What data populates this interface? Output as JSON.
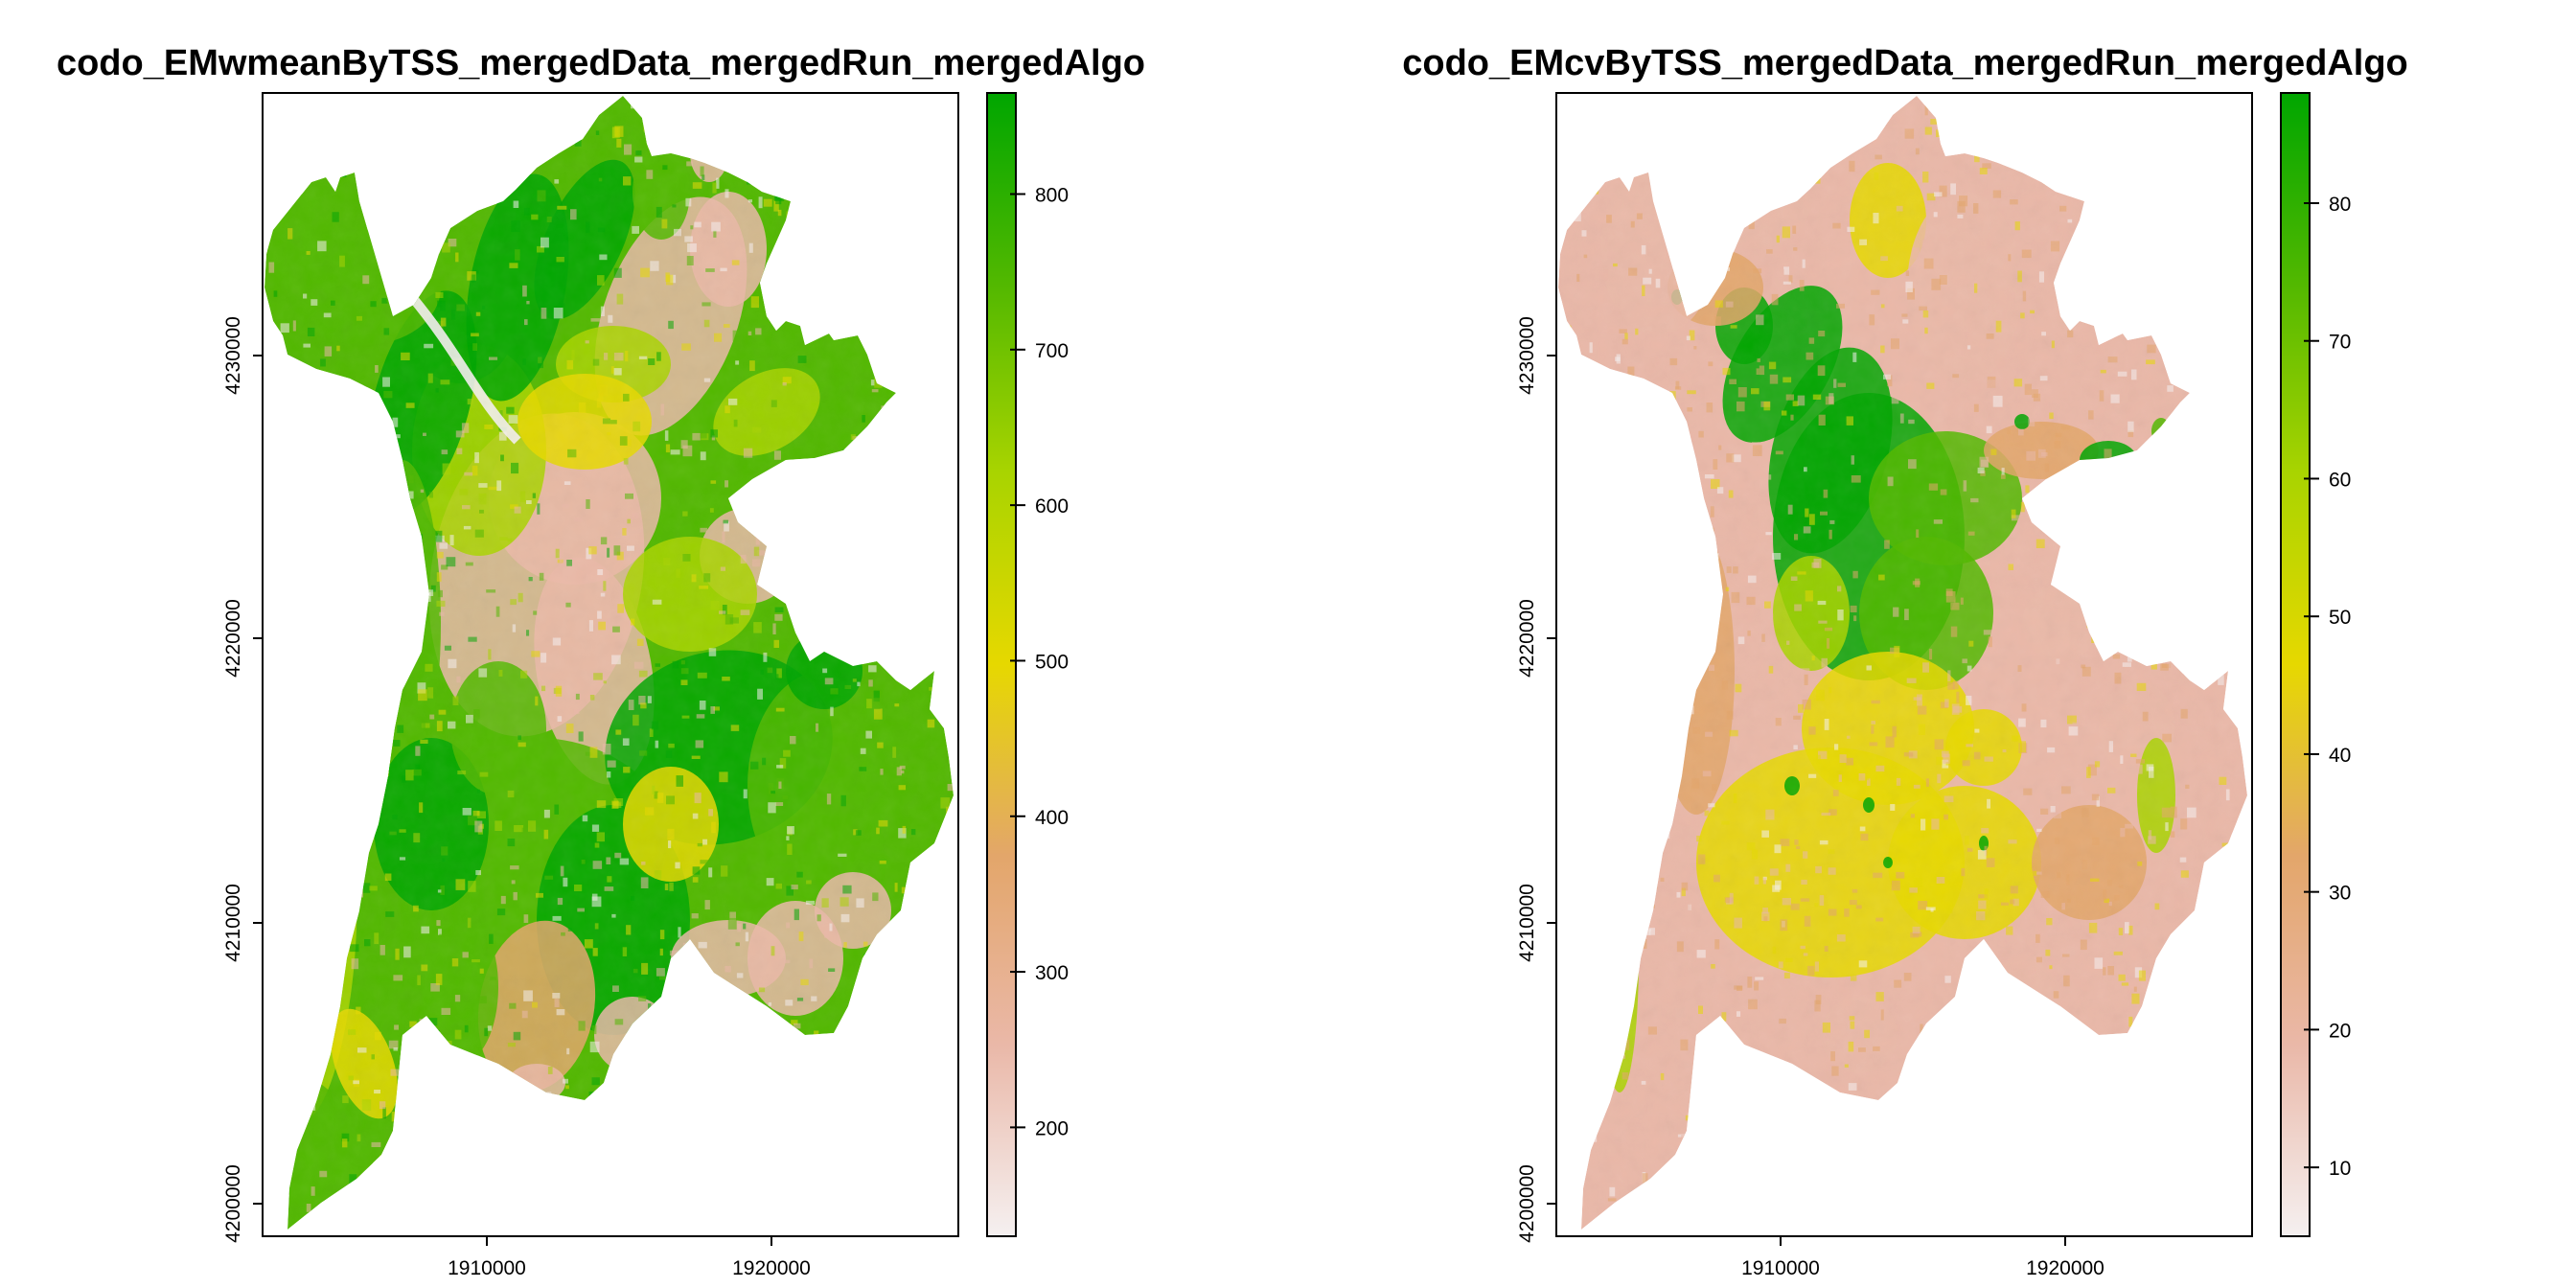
{
  "panels": [
    {
      "title": "codo_EMwmeanByTSS_mergedData_mergedRun_mergedAlgo",
      "x_ticks": [
        "1910000",
        "1920000"
      ],
      "y_ticks": [
        "4200000",
        "4210000",
        "4220000",
        "4230000"
      ],
      "legend": {
        "ticks": [
          "200",
          "300",
          "400",
          "500",
          "600",
          "700",
          "800"
        ],
        "values": [
          200,
          300,
          400,
          500,
          600,
          700,
          800
        ],
        "min": 130,
        "max": 865,
        "colors": [
          "#f5f0f0",
          "#eab8a8",
          "#e3a66a",
          "#e6d800",
          "#a9d400",
          "#52b800",
          "#00a600"
        ]
      },
      "map_scheme": "wmean"
    },
    {
      "title": "codo_EMcvByTSS_mergedData_mergedRun_mergedAlgo",
      "x_ticks": [
        "1910000",
        "1920000"
      ],
      "y_ticks": [
        "4200000",
        "4210000",
        "4220000",
        "4230000"
      ],
      "legend": {
        "ticks": [
          "10",
          "20",
          "30",
          "40",
          "50",
          "60",
          "70",
          "80"
        ],
        "values": [
          10,
          20,
          30,
          40,
          50,
          60,
          70,
          80
        ],
        "min": 5,
        "max": 88,
        "colors": [
          "#f5f0f0",
          "#eab8a8",
          "#e3a66a",
          "#e6d800",
          "#a9d400",
          "#52b800",
          "#00a600"
        ]
      },
      "map_scheme": "cv"
    }
  ]
}
